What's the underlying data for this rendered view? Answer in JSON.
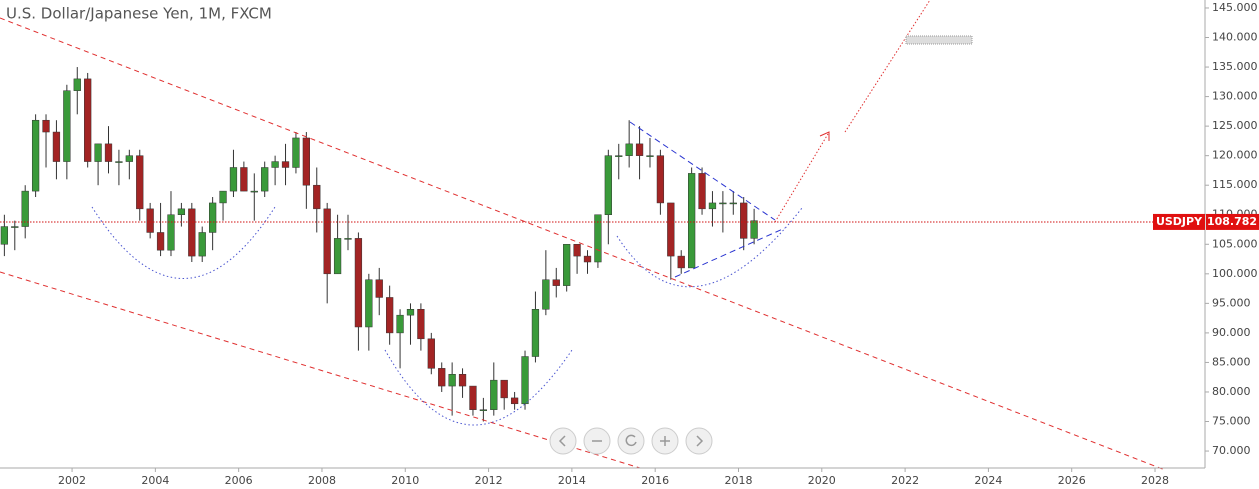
{
  "chart_data": {
    "type": "candlestick",
    "title": "U.S. Dollar/Japanese Yen, 1M, FXCM",
    "symbol": "USDJPY",
    "last_price": 108.782,
    "up_color": "#3a9a3a",
    "down_color": "#a32424",
    "x": [
      2000.25,
      2000.5,
      2000.75,
      2001.0,
      2001.25,
      2001.5,
      2001.75,
      2002.0,
      2002.25,
      2002.5,
      2002.75,
      2003.0,
      2003.25,
      2003.5,
      2003.75,
      2004.0,
      2004.25,
      2004.5,
      2004.75,
      2005.0,
      2005.25,
      2005.5,
      2005.75,
      2006.0,
      2006.25,
      2006.5,
      2006.75,
      2007.0,
      2007.25,
      2007.5,
      2007.75,
      2008.0,
      2008.25,
      2008.5,
      2008.75,
      2009.0,
      2009.25,
      2009.5,
      2009.75,
      2010.0,
      2010.25,
      2010.5,
      2010.75,
      2011.0,
      2011.25,
      2011.5,
      2011.75,
      2012.0,
      2012.25,
      2012.5,
      2012.75,
      2013.0,
      2013.25,
      2013.5,
      2013.75,
      2014.0,
      2014.25,
      2014.5,
      2014.75,
      2015.0,
      2015.25,
      2015.5,
      2015.75,
      2016.0,
      2016.25,
      2016.5,
      2016.75,
      2017.0,
      2017.25,
      2017.5,
      2017.75,
      2018.0,
      2018.25
    ],
    "open": [
      105,
      108,
      108,
      114,
      126,
      124,
      119,
      131,
      133,
      119,
      122,
      119,
      119,
      120,
      111,
      107,
      104,
      110,
      111,
      103,
      107,
      112,
      114,
      118,
      114,
      114,
      118,
      119,
      118,
      123,
      115,
      111,
      100,
      106,
      106,
      91,
      99,
      96,
      90,
      93,
      94,
      89,
      84,
      81,
      83,
      81,
      77,
      77,
      82,
      79,
      78,
      86,
      94,
      99,
      98,
      105,
      103,
      102,
      110,
      120,
      120,
      122,
      120,
      120,
      112,
      103,
      101,
      117,
      111,
      112,
      112,
      112,
      106
    ],
    "high": [
      110,
      109,
      115,
      127,
      127,
      126,
      132,
      135,
      134,
      122,
      125,
      121,
      121,
      121,
      112,
      112,
      114,
      112,
      112,
      108,
      113,
      114,
      121,
      119,
      117,
      119,
      120,
      122,
      124,
      124,
      118,
      112,
      110,
      110,
      107,
      100,
      101,
      98,
      94,
      95,
      95,
      90,
      85,
      85,
      84,
      81,
      79,
      85,
      82,
      80,
      87,
      97,
      104,
      101,
      105,
      105,
      104,
      110,
      121,
      122,
      126,
      125,
      123,
      121,
      112,
      104,
      118,
      118,
      114,
      114,
      114,
      113,
      111
    ],
    "low": [
      103,
      104,
      106,
      113,
      118,
      116,
      116,
      127,
      118,
      115,
      117,
      115,
      116,
      109,
      106,
      103,
      103,
      108,
      102,
      102,
      104,
      109,
      113,
      114,
      109,
      113,
      115,
      115,
      117,
      111,
      107,
      95,
      100,
      104,
      87,
      87,
      93,
      88,
      84,
      88,
      87,
      83,
      80,
      76,
      79,
      76,
      75,
      76,
      77,
      77,
      77,
      85,
      93,
      96,
      97,
      100,
      100,
      101,
      105,
      116,
      118,
      116,
      118,
      110,
      99,
      100,
      101,
      110,
      108,
      107,
      110,
      104,
      105
    ],
    "close": [
      108,
      108,
      114,
      126,
      124,
      119,
      131,
      133,
      119,
      122,
      119,
      119,
      120,
      111,
      107,
      104,
      110,
      111,
      103,
      107,
      112,
      114,
      118,
      114,
      114,
      118,
      119,
      118,
      123,
      115,
      111,
      100,
      106,
      106,
      91,
      99,
      96,
      90,
      93,
      94,
      89,
      84,
      81,
      83,
      81,
      77,
      77,
      82,
      79,
      78,
      86,
      94,
      99,
      98,
      105,
      103,
      102,
      110,
      120,
      120,
      122,
      120,
      120,
      112,
      103,
      101,
      117,
      111,
      112,
      112,
      112,
      106,
      109
    ],
    "xlim": [
      2000.27,
      2029.2
    ],
    "xticks": [
      2002,
      2004,
      2006,
      2008,
      2010,
      2012,
      2014,
      2016,
      2018,
      2020,
      2022,
      2024,
      2026,
      2028
    ],
    "ylim": [
      67.3,
      146.35
    ],
    "yticks": [
      {
        "value": 70,
        "label": "70.000"
      },
      {
        "value": 75,
        "label": "75.000"
      },
      {
        "value": 80,
        "label": "80.000"
      },
      {
        "value": 85,
        "label": "85.000"
      },
      {
        "value": 90,
        "label": "90.000"
      },
      {
        "value": 95,
        "label": "95.000"
      },
      {
        "value": 100,
        "label": "100.000"
      },
      {
        "value": 105,
        "label": "105.000"
      },
      {
        "value": 110,
        "label": "110.000"
      },
      {
        "value": 115,
        "label": "115.000"
      },
      {
        "value": 120,
        "label": "120.000"
      },
      {
        "value": 125,
        "label": "125.000"
      },
      {
        "value": 130,
        "label": "130.000"
      },
      {
        "value": 135,
        "label": "135.000"
      },
      {
        "value": 140,
        "label": "140.000"
      },
      {
        "value": 145,
        "label": "145.000"
      }
    ]
  }
}
